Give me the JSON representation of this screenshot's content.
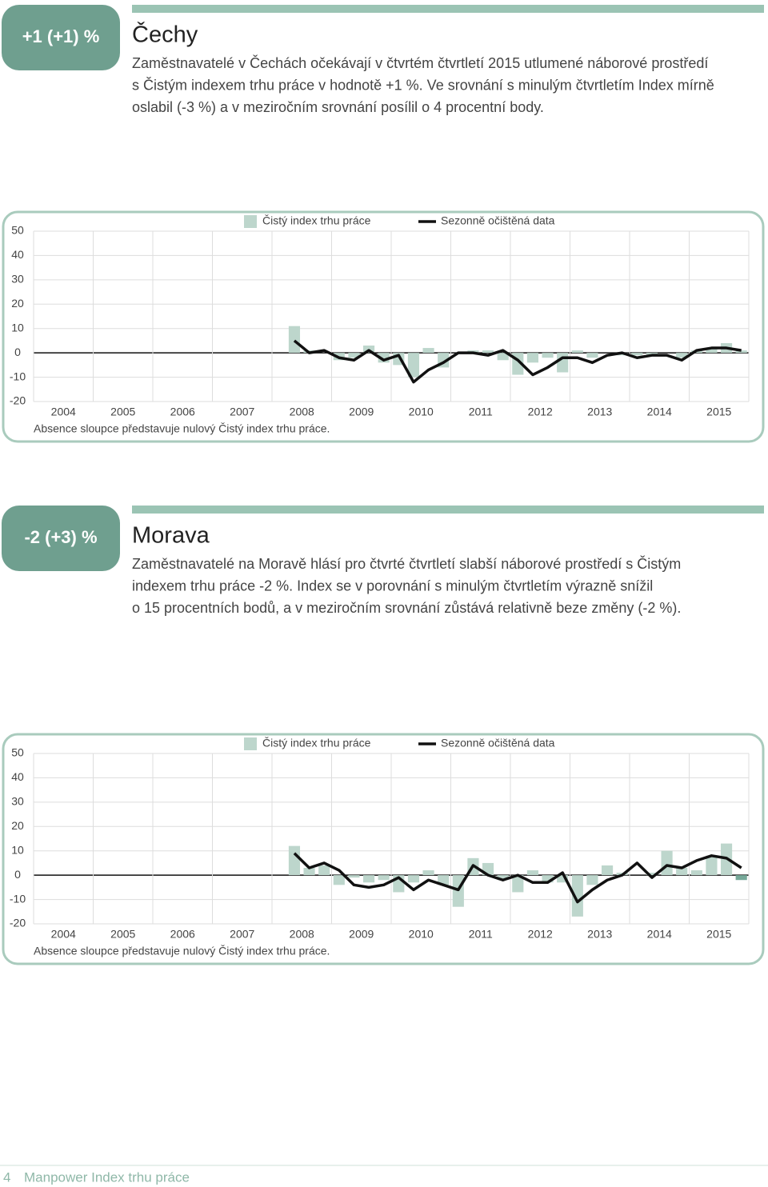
{
  "sections": [
    {
      "badge": "+1 (+1) %",
      "title": "Čechy",
      "lines": [
        "Zaměstnavatelé v Čechách očekávají v čtvrtém čtvrtletí 2015 utlumené náborové prostředí",
        "s Čistým indexem trhu práce v hodnotě +1 %. Ve srovnání s minulým čtvrtletím Index mírně",
        "oslabil (-3 %) a v meziročním srovnání posílil o 4 procentní body."
      ]
    },
    {
      "badge": "-2 (+3) %",
      "title": "Morava",
      "lines": [
        "Zaměstnavatelé na Moravě hlásí pro čtvrté čtvrtletí slabší náborové prostředí s Čistým",
        "indexem trhu práce -2 %. Index se v porovnání s minulým čtvrtletím výrazně snížil",
        "o 15 procentních bodů, a v meziročním srovnání zůstává relativně beze změny (-2 %)."
      ]
    }
  ],
  "footer": {
    "page": "4",
    "title": "Manpower Index trhu práce"
  },
  "chart_data": [
    {
      "type": "bar-line",
      "categories": [
        "2004",
        null,
        null,
        null,
        "2005",
        null,
        null,
        null,
        "2006",
        null,
        null,
        null,
        "2007",
        null,
        null,
        null,
        "2008",
        null,
        null,
        null,
        "2009",
        null,
        null,
        null,
        "2010",
        null,
        null,
        null,
        "2011",
        null,
        null,
        null,
        "2012",
        null,
        null,
        null,
        "2013",
        null,
        null,
        null,
        "2014",
        null,
        null,
        null,
        "2015",
        null,
        null,
        null
      ],
      "series": [
        {
          "name": "Čistý index trhu práce",
          "kind": "bar",
          "color": "#bdd6cc",
          "values": [
            null,
            null,
            null,
            null,
            null,
            null,
            null,
            null,
            null,
            null,
            null,
            null,
            null,
            null,
            null,
            null,
            null,
            11,
            1,
            0,
            -3,
            -2,
            3,
            -4,
            -5,
            -10,
            2,
            -6,
            0,
            1,
            1,
            -3,
            -9,
            -4,
            -2,
            -8,
            1,
            -2,
            0,
            -1,
            -1,
            -1,
            0,
            -2,
            1,
            2,
            4,
            1
          ]
        },
        {
          "name": "Sezonně očištěná data",
          "kind": "line",
          "color": "#111111",
          "values": [
            null,
            null,
            null,
            null,
            null,
            null,
            null,
            null,
            null,
            null,
            null,
            null,
            null,
            null,
            null,
            null,
            null,
            5,
            0,
            1,
            -2,
            -3,
            1,
            -3,
            -1,
            -12,
            -7,
            -4,
            0,
            0,
            -1,
            1,
            -3,
            -9,
            -6,
            -2,
            -2,
            -4,
            -1,
            0,
            -2,
            -1,
            -1,
            -3,
            1,
            2,
            2,
            1
          ]
        }
      ],
      "ylim": [
        -20,
        50
      ],
      "yticks": [
        50,
        40,
        30,
        20,
        10,
        0,
        -10,
        -20
      ],
      "grid": true,
      "note": "Absence sloupce představuje nulový Čistý index trhu práce."
    },
    {
      "type": "bar-line",
      "categories": [
        "2004",
        null,
        null,
        null,
        "2005",
        null,
        null,
        null,
        "2006",
        null,
        null,
        null,
        "2007",
        null,
        null,
        null,
        "2008",
        null,
        null,
        null,
        "2009",
        null,
        null,
        null,
        "2010",
        null,
        null,
        null,
        "2011",
        null,
        null,
        null,
        "2012",
        null,
        null,
        null,
        "2013",
        null,
        null,
        null,
        "2014",
        null,
        null,
        null,
        "2015",
        null,
        null,
        null
      ],
      "series": [
        {
          "name": "Čistý index trhu práce",
          "kind": "bar",
          "color": "#bdd6cc",
          "highlight_color": "#76a898",
          "values": [
            null,
            null,
            null,
            null,
            null,
            null,
            null,
            null,
            null,
            null,
            null,
            null,
            null,
            null,
            null,
            null,
            null,
            12,
            3,
            4,
            -4,
            -1,
            -3,
            -2,
            -7,
            -3,
            2,
            -4,
            -13,
            7,
            5,
            -2,
            -7,
            2,
            -3,
            -3,
            -17,
            -4,
            4,
            1,
            0,
            1,
            10,
            3,
            2,
            8,
            13,
            -2
          ]
        },
        {
          "name": "Sezonně očištěná data",
          "kind": "line",
          "color": "#111111",
          "values": [
            null,
            null,
            null,
            null,
            null,
            null,
            null,
            null,
            null,
            null,
            null,
            null,
            null,
            null,
            null,
            null,
            null,
            9,
            3,
            5,
            2,
            -4,
            -5,
            -4,
            -1,
            -6,
            -2,
            -4,
            -6,
            4,
            0,
            -2,
            0,
            -3,
            -3,
            1,
            -11,
            -6,
            -2,
            0,
            5,
            -1,
            4,
            3,
            6,
            8,
            7,
            3
          ]
        }
      ],
      "ylim": [
        -20,
        50
      ],
      "yticks": [
        50,
        40,
        30,
        20,
        10,
        0,
        -10,
        -20
      ],
      "grid": true,
      "note": "Absence sloupce představuje nulový Čistý index trhu práce."
    }
  ]
}
